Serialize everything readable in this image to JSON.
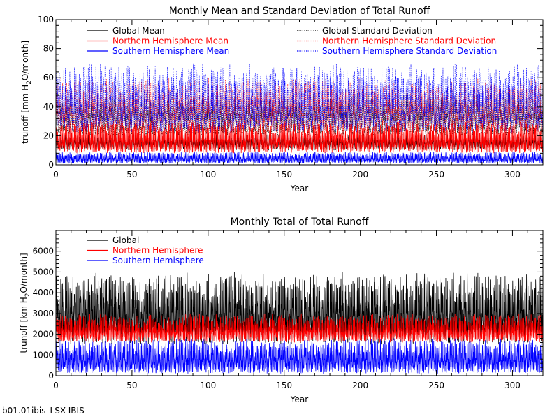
{
  "footer": {
    "run_id": "b01.01ibis",
    "model": "LSX-IBIS"
  },
  "colors": {
    "global": "#000000",
    "north": "#ff0000",
    "south": "#0000ff"
  },
  "chart_data": [
    {
      "type": "line",
      "title": "Monthly Mean and Standard Deviation of Total Runoff",
      "xlabel": "Year",
      "ylabel": "trunoff [mm H2O/month]",
      "ylabel_base": "trunoff [mm H",
      "ylabel_sub": "2",
      "ylabel_tail": "O/month]",
      "xlim": [
        0,
        320
      ],
      "ylim": [
        0,
        100
      ],
      "xticks": [
        0,
        50,
        100,
        150,
        200,
        250,
        300
      ],
      "yticks": [
        0,
        20,
        40,
        60,
        80,
        100
      ],
      "legend_placement": "top",
      "series": [
        {
          "name": "Global Mean",
          "style": "solid",
          "color": "#000000",
          "min": 10,
          "max": 22
        },
        {
          "name": "Northern Hemisphere Mean",
          "style": "solid",
          "color": "#ff0000",
          "min": 8,
          "max": 30
        },
        {
          "name": "Southern Hemisphere Mean",
          "style": "solid",
          "color": "#0000ff",
          "min": 1,
          "max": 9
        },
        {
          "name": "Global Standard Deviation",
          "style": "dotted",
          "color": "#000000",
          "min": 20,
          "max": 50
        },
        {
          "name": "Northern Hemisphere Standard Deviation",
          "style": "dotted",
          "color": "#ff0000",
          "min": 22,
          "max": 60
        },
        {
          "name": "Southern Hemisphere Standard Deviation",
          "style": "dotted",
          "color": "#0000ff",
          "min": 22,
          "max": 70
        }
      ]
    },
    {
      "type": "line",
      "title": "Monthly Total of Total Runoff",
      "xlabel": "Year",
      "ylabel": "trunoff [km H2O/month]",
      "ylabel_base": "trunoff [km H",
      "ylabel_sub": "2",
      "ylabel_tail": "O/month]",
      "xlim": [
        0,
        320
      ],
      "ylim": [
        0,
        7000
      ],
      "xticks": [
        0,
        50,
        100,
        150,
        200,
        250,
        300
      ],
      "yticks": [
        0,
        1000,
        2000,
        3000,
        4000,
        5000,
        6000
      ],
      "legend_placement": "top-left",
      "series": [
        {
          "name": "Global",
          "style": "solid",
          "color": "#000000",
          "min": 1500,
          "max": 5000
        },
        {
          "name": "Northern Hemisphere",
          "style": "solid",
          "color": "#ff0000",
          "min": 1600,
          "max": 3000
        },
        {
          "name": "Southern Hemisphere",
          "style": "solid",
          "color": "#0000ff",
          "min": 100,
          "max": 1800
        }
      ]
    }
  ]
}
